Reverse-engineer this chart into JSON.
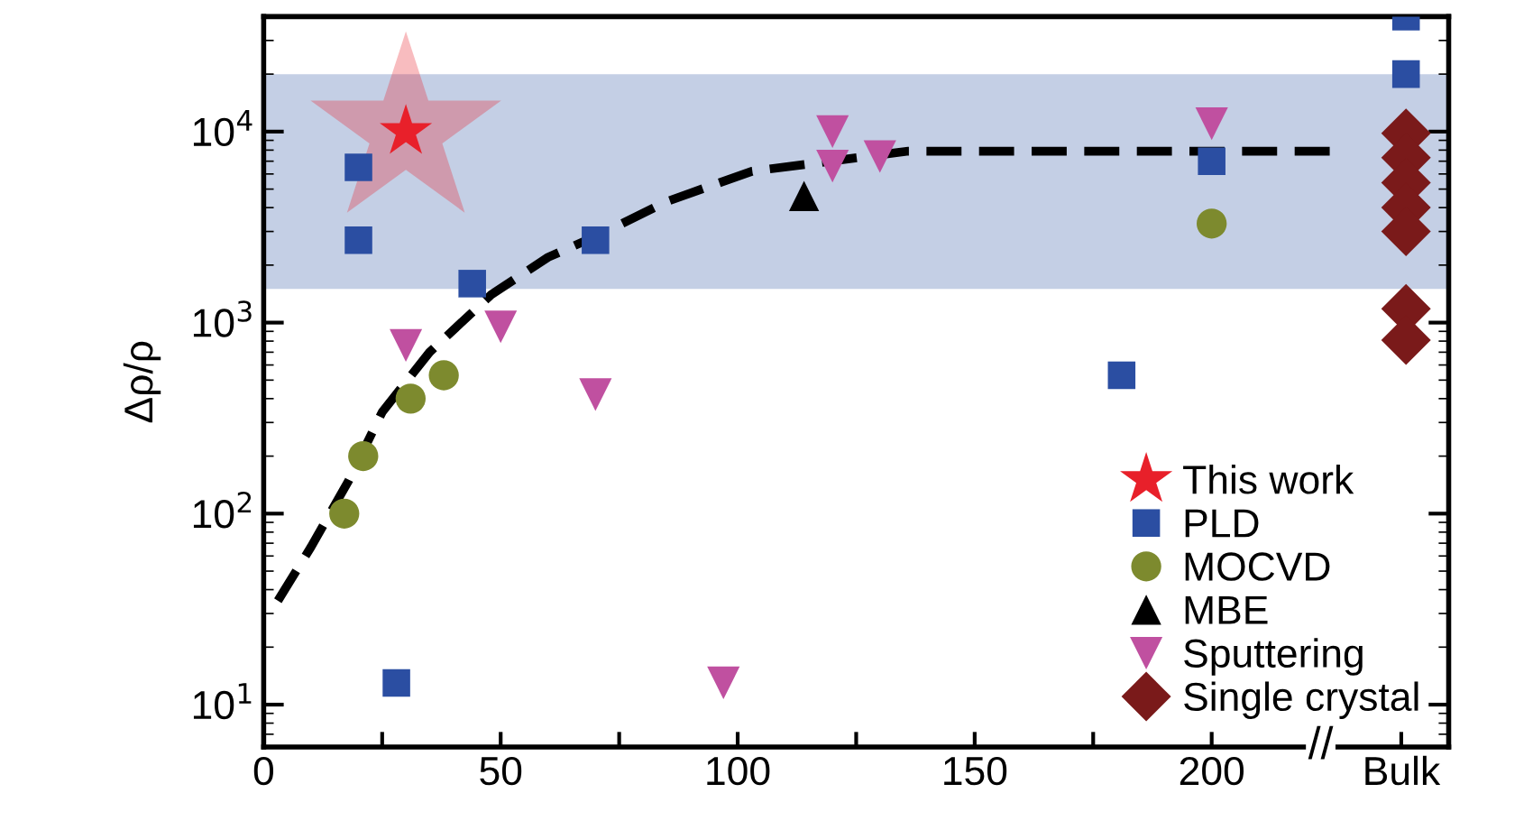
{
  "chart_data": {
    "type": "scatter",
    "ylabel": "Δρ/ρ",
    "xlim": [
      0,
      250
    ],
    "ylim": [
      6,
      40000
    ],
    "log": "y",
    "xticks": [
      0,
      {
        "value": 25,
        "label": null
      },
      50,
      {
        "value": 75,
        "label": null
      },
      100,
      {
        "value": 125,
        "label": null
      },
      150,
      {
        "value": 175,
        "label": null
      },
      200,
      {
        "value": 240,
        "label": "Bulk"
      }
    ],
    "yticks": [
      {
        "value": 10,
        "label": "10$^{1}$"
      },
      {
        "value": 100,
        "label": "10$^{2}$"
      },
      {
        "value": 1000,
        "label": "10$^{3}$"
      },
      {
        "value": 10000,
        "label": "10$^{4}$"
      }
    ],
    "grid": false,
    "legend": "bottom right",
    "bands": [
      {
        "axis": "y",
        "from": 1500,
        "to": 20000,
        "color": "#3a5fa8"
      }
    ],
    "annotations": [
      {
        "text": "//",
        "x": 223,
        "y": 6
      }
    ],
    "series": [
      {
        "name": "This work",
        "color": "#e8202a",
        "marker": "star",
        "x": [
          30
        ],
        "values": [
          10000
        ]
      },
      {
        "name": "PLD",
        "color": "#2b4ea2",
        "marker": "square",
        "x": [
          20,
          20,
          44,
          70,
          28,
          200,
          181,
          241,
          241
        ],
        "values": [
          6500,
          2700,
          1600,
          2700,
          13,
          7000,
          530,
          20000,
          40000
        ]
      },
      {
        "name": "MOCVD",
        "color": "#7d8a2e",
        "marker": "circle",
        "x": [
          17,
          21,
          31,
          38,
          200
        ],
        "values": [
          100,
          200,
          400,
          530,
          3300
        ]
      },
      {
        "name": "MBE",
        "color": "#000000",
        "marker": "triangle",
        "x": [
          114
        ],
        "values": [
          4600
        ]
      },
      {
        "name": "Sputtering",
        "color": "#c050a0",
        "marker": "triangle_down",
        "x": [
          30,
          50,
          70,
          97,
          120,
          120,
          130,
          200
        ],
        "values": [
          760,
          950,
          420,
          13,
          10000,
          6600,
          7400,
          11000
        ]
      },
      {
        "name": "Single crystal",
        "color": "#7a1a1a",
        "marker": "diamond",
        "x": [
          241,
          241,
          241,
          241,
          241,
          241,
          241
        ],
        "values": [
          9800,
          7300,
          5400,
          4000,
          3000,
          1180,
          810
        ]
      },
      {
        "type": "line",
        "color": "#000000",
        "line_style": "dashed",
        "marker": "none",
        "x": [
          3,
          10,
          18,
          25,
          35,
          48,
          60,
          71,
          85,
          103,
          136,
          180,
          226
        ],
        "values": [
          35,
          67,
          150,
          340,
          700,
          1400,
          2200,
          2900,
          4300,
          6200,
          7900,
          7900,
          7900
        ]
      }
    ]
  }
}
